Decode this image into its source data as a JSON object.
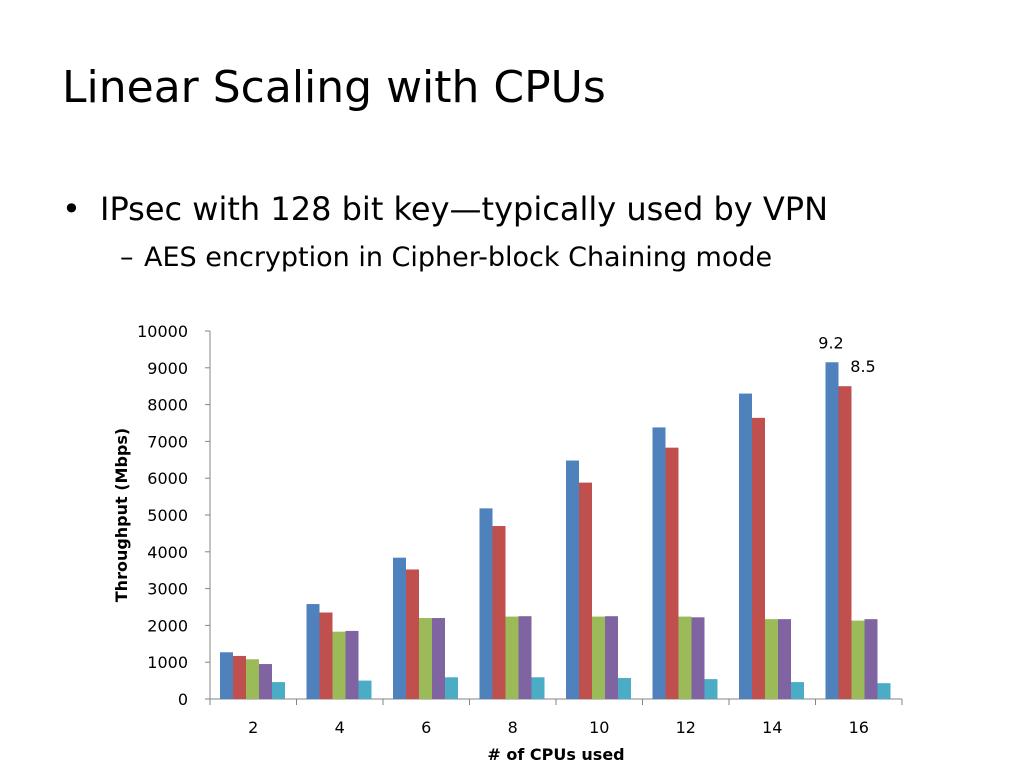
{
  "slide": {
    "title": "Linear Scaling with CPUs",
    "bullet_1": "IPsec with 128 bit key—typically used by VPN",
    "bullet_2": "AES encryption in Cipher-block Chaining mode"
  },
  "chart_data": {
    "type": "bar",
    "title": "",
    "xlabel": "# of CPUs used",
    "ylabel": "Throughput (Mbps)",
    "ylim": [
      0,
      10000
    ],
    "yticks": [
      0,
      1000,
      2000,
      3000,
      4000,
      5000,
      6000,
      7000,
      8000,
      9000,
      10000
    ],
    "grid": false,
    "legend": "none",
    "categories": [
      "2",
      "4",
      "6",
      "8",
      "10",
      "12",
      "14",
      "16"
    ],
    "series": [
      {
        "color": "#4F81BD",
        "values": [
          1270,
          2580,
          3840,
          5180,
          6480,
          7380,
          8300,
          9150
        ]
      },
      {
        "color": "#C0504D",
        "values": [
          1170,
          2350,
          3520,
          4700,
          5880,
          6830,
          7640,
          8500
        ]
      },
      {
        "color": "#9BBB59",
        "values": [
          1080,
          1830,
          2200,
          2240,
          2240,
          2240,
          2170,
          2130
        ]
      },
      {
        "color": "#8064A2",
        "values": [
          950,
          1850,
          2200,
          2250,
          2250,
          2220,
          2170,
          2170
        ]
      },
      {
        "color": "#4BACC6",
        "values": [
          460,
          500,
          590,
          590,
          570,
          540,
          460,
          430
        ]
      }
    ],
    "annotations": [
      {
        "text": "9.2",
        "category": "16",
        "series_index": 0
      },
      {
        "text": "8.5",
        "category": "16",
        "series_index": 1
      }
    ]
  }
}
